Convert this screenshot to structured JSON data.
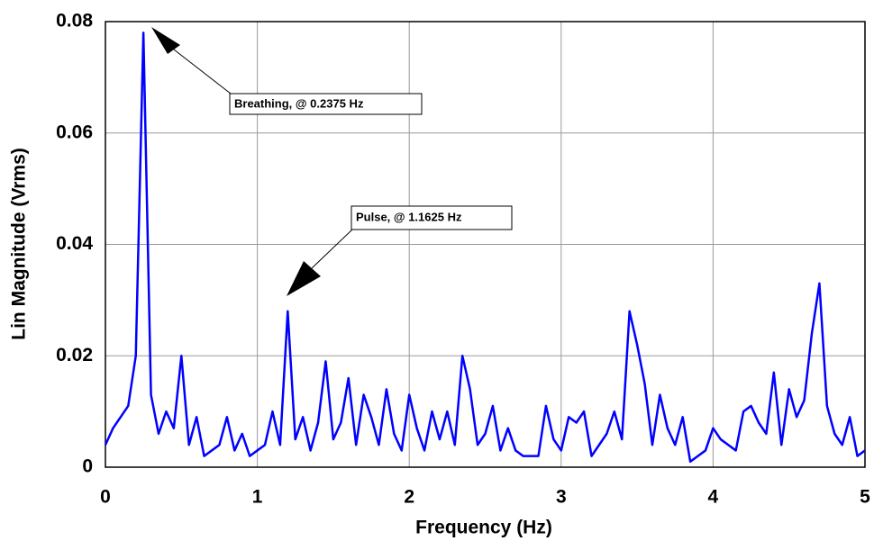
{
  "chart_data": {
    "type": "line",
    "xlabel": "Frequency (Hz)",
    "ylabel": "Lin Magnitude (Vrms)",
    "annotations": [
      "Breathing, @ 0.2375 Hz",
      "Pulse, @ 1.1625 Hz"
    ],
    "xlim": [
      0,
      5
    ],
    "ylim": [
      0,
      0.08
    ],
    "xticks": [
      0,
      1,
      2,
      3,
      4,
      5
    ],
    "yticks": [
      0,
      0.02,
      0.04,
      0.06,
      0.08
    ],
    "grid": true,
    "x": [
      0,
      0.05,
      0.1,
      0.15,
      0.2,
      0.25,
      0.3,
      0.35,
      0.4,
      0.45,
      0.5,
      0.55,
      0.6,
      0.65,
      0.7,
      0.75,
      0.8,
      0.85,
      0.9,
      0.95,
      1,
      1.05,
      1.1,
      1.15,
      1.2,
      1.25,
      1.3,
      1.35,
      1.4,
      1.45,
      1.5,
      1.55,
      1.6,
      1.65,
      1.7,
      1.75,
      1.8,
      1.85,
      1.9,
      1.95,
      2,
      2.05,
      2.1,
      2.15,
      2.2,
      2.25,
      2.3,
      2.35,
      2.4,
      2.45,
      2.5,
      2.55,
      2.6,
      2.65,
      2.7,
      2.75,
      2.8,
      2.85,
      2.9,
      2.95,
      3,
      3.05,
      3.1,
      3.15,
      3.2,
      3.25,
      3.3,
      3.35,
      3.4,
      3.45,
      3.5,
      3.55,
      3.6,
      3.65,
      3.7,
      3.75,
      3.8,
      3.85,
      3.9,
      3.95,
      4,
      4.05,
      4.1,
      4.15,
      4.2,
      4.25,
      4.3,
      4.35,
      4.4,
      4.45,
      4.5,
      4.55,
      4.6,
      4.65,
      4.7,
      4.75,
      4.8,
      4.85,
      4.9,
      4.95,
      5
    ],
    "series": [
      {
        "color": "#0000ff",
        "values": [
          0.004,
          0.007,
          0.009,
          0.011,
          0.02,
          0.078,
          0.013,
          0.006,
          0.01,
          0.007,
          0.02,
          0.004,
          0.009,
          0.002,
          0.003,
          0.004,
          0.009,
          0.003,
          0.006,
          0.002,
          0.003,
          0.004,
          0.01,
          0.004,
          0.028,
          0.005,
          0.009,
          0.003,
          0.008,
          0.019,
          0.005,
          0.008,
          0.016,
          0.004,
          0.013,
          0.009,
          0.004,
          0.014,
          0.006,
          0.003,
          0.013,
          0.007,
          0.003,
          0.01,
          0.005,
          0.01,
          0.004,
          0.02,
          0.014,
          0.004,
          0.006,
          0.011,
          0.003,
          0.007,
          0.003,
          0.002,
          0.002,
          0.002,
          0.011,
          0.005,
          0.003,
          0.009,
          0.008,
          0.01,
          0.002,
          0.004,
          0.006,
          0.01,
          0.005,
          0.028,
          0.022,
          0.015,
          0.004,
          0.013,
          0.007,
          0.004,
          0.009,
          0.001,
          0.002,
          0.003,
          0.007,
          0.005,
          0.004,
          0.003,
          0.01,
          0.011,
          0.008,
          0.006,
          0.017,
          0.004,
          0.014,
          0.009,
          0.012,
          0.024,
          0.033,
          0.011,
          0.006,
          0.004,
          0.009,
          0.002,
          0.003
        ]
      }
    ]
  }
}
